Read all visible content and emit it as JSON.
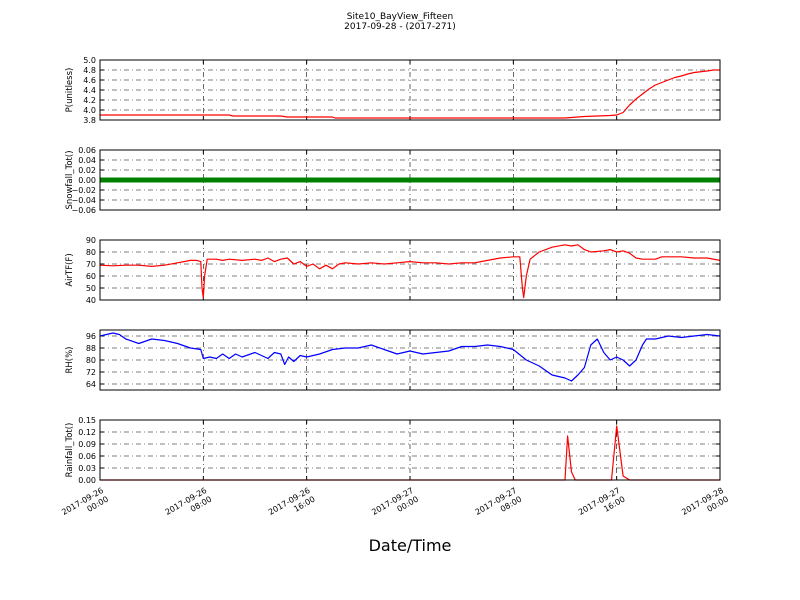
{
  "chart_data": {
    "type": "line",
    "title": "Site10_BayView_Fifteen",
    "subtitle": "2017-09-28 - (2017-271)",
    "xlabel": "Date/Time",
    "x_ticks": [
      {
        "t": 0,
        "line1": "2017-09-26",
        "line2": "00:00"
      },
      {
        "t": 8,
        "line1": "2017-09-26",
        "line2": "08:00"
      },
      {
        "t": 16,
        "line1": "2017-09-26",
        "line2": "16:00"
      },
      {
        "t": 24,
        "line1": "2017-09-27",
        "line2": "00:00"
      },
      {
        "t": 32,
        "line1": "2017-09-27",
        "line2": "08:00"
      },
      {
        "t": 40,
        "line1": "2017-09-27",
        "line2": "16:00"
      },
      {
        "t": 48,
        "line1": "2017-09-28",
        "line2": "00:00"
      }
    ],
    "x_range_hours": [
      0,
      48
    ],
    "grid": true,
    "panels": [
      {
        "ylabel": "P(unitless)",
        "ylim": [
          3.8,
          5.0
        ],
        "yticks": [
          "3.8",
          "4.0",
          "4.2",
          "4.4",
          "4.6",
          "4.8",
          "5.0"
        ],
        "color": "#ff0000",
        "style": "line",
        "points": [
          [
            0,
            3.9
          ],
          [
            10,
            3.9
          ],
          [
            10.3,
            3.88
          ],
          [
            14,
            3.88
          ],
          [
            14.5,
            3.86
          ],
          [
            18,
            3.86
          ],
          [
            18.2,
            3.84
          ],
          [
            36,
            3.84
          ],
          [
            36.5,
            3.85
          ],
          [
            37.5,
            3.87
          ],
          [
            38.5,
            3.88
          ],
          [
            39.5,
            3.89
          ],
          [
            40,
            3.9
          ],
          [
            40.5,
            3.95
          ],
          [
            41,
            4.1
          ],
          [
            41.5,
            4.22
          ],
          [
            42,
            4.32
          ],
          [
            42.5,
            4.42
          ],
          [
            43,
            4.5
          ],
          [
            43.5,
            4.55
          ],
          [
            44,
            4.6
          ],
          [
            44.5,
            4.65
          ],
          [
            45,
            4.68
          ],
          [
            45.5,
            4.72
          ],
          [
            46,
            4.75
          ],
          [
            47,
            4.78
          ],
          [
            47.5,
            4.8
          ],
          [
            48,
            4.8
          ]
        ]
      },
      {
        "ylabel": "Snowfall_Tot()",
        "ylim": [
          -0.06,
          0.06
        ],
        "yticks": [
          "−0.06",
          "−0.04",
          "−0.02",
          "0.00",
          "0.02",
          "0.04",
          "0.06"
        ],
        "color": "#008000",
        "style": "thick",
        "points": [
          [
            0,
            0
          ],
          [
            48,
            0
          ]
        ]
      },
      {
        "ylabel": "AirTF(F)",
        "ylim": [
          40,
          90
        ],
        "yticks": [
          "40",
          "50",
          "60",
          "70",
          "80",
          "90"
        ],
        "color": "#ff0000",
        "style": "line",
        "points": [
          [
            0,
            69
          ],
          [
            1,
            68.5
          ],
          [
            2,
            69
          ],
          [
            3,
            69
          ],
          [
            4,
            68
          ],
          [
            5,
            69
          ],
          [
            6,
            71
          ],
          [
            6.5,
            72
          ],
          [
            7,
            73
          ],
          [
            7.5,
            73
          ],
          [
            7.8,
            72
          ],
          [
            7.9,
            50
          ],
          [
            8,
            42
          ],
          [
            8.1,
            60
          ],
          [
            8.3,
            74
          ],
          [
            9,
            74
          ],
          [
            9.5,
            73
          ],
          [
            10,
            74
          ],
          [
            11,
            73
          ],
          [
            12,
            74
          ],
          [
            12.5,
            73
          ],
          [
            13,
            75
          ],
          [
            13.5,
            72
          ],
          [
            14,
            74
          ],
          [
            14.5,
            75
          ],
          [
            15,
            70
          ],
          [
            15.5,
            72
          ],
          [
            16,
            68
          ],
          [
            16.5,
            70
          ],
          [
            17,
            66
          ],
          [
            17.5,
            69
          ],
          [
            18,
            66
          ],
          [
            18.5,
            70
          ],
          [
            19,
            71
          ],
          [
            20,
            70
          ],
          [
            21,
            71
          ],
          [
            22,
            70
          ],
          [
            23,
            71
          ],
          [
            24,
            72
          ],
          [
            25,
            71
          ],
          [
            26,
            71
          ],
          [
            27,
            70
          ],
          [
            28,
            71
          ],
          [
            29,
            71
          ],
          [
            30,
            73
          ],
          [
            31,
            75
          ],
          [
            32,
            76
          ],
          [
            32.5,
            76
          ],
          [
            32.7,
            50
          ],
          [
            32.8,
            42
          ],
          [
            33,
            60
          ],
          [
            33.3,
            74
          ],
          [
            34,
            80
          ],
          [
            35,
            84
          ],
          [
            36,
            86
          ],
          [
            36.5,
            85
          ],
          [
            37,
            86
          ],
          [
            37.5,
            82
          ],
          [
            38,
            80
          ],
          [
            39,
            81
          ],
          [
            39.5,
            82
          ],
          [
            40,
            80
          ],
          [
            40.5,
            81
          ],
          [
            41,
            79
          ],
          [
            41.5,
            75
          ],
          [
            42,
            74
          ],
          [
            43,
            74
          ],
          [
            43.5,
            76
          ],
          [
            45,
            76
          ],
          [
            46,
            75
          ],
          [
            47,
            75
          ],
          [
            48,
            73
          ]
        ]
      },
      {
        "ylabel": "RH(%)",
        "ylim": [
          60,
          100
        ],
        "yticks": [
          "64",
          "72",
          "80",
          "88",
          "96"
        ],
        "color": "#0000ff",
        "style": "line",
        "points": [
          [
            0,
            96
          ],
          [
            1,
            98
          ],
          [
            1.5,
            97
          ],
          [
            2,
            94
          ],
          [
            3,
            91
          ],
          [
            4,
            94
          ],
          [
            5,
            93
          ],
          [
            6,
            91
          ],
          [
            7,
            88
          ],
          [
            7.8,
            87
          ],
          [
            8,
            81
          ],
          [
            8.5,
            82
          ],
          [
            9,
            81
          ],
          [
            9.5,
            84
          ],
          [
            10,
            81
          ],
          [
            10.5,
            84
          ],
          [
            11,
            82
          ],
          [
            12,
            85
          ],
          [
            12.5,
            83
          ],
          [
            13,
            81
          ],
          [
            13.5,
            85
          ],
          [
            14,
            84
          ],
          [
            14.3,
            77
          ],
          [
            14.6,
            82
          ],
          [
            15,
            79
          ],
          [
            15.5,
            83
          ],
          [
            16,
            82
          ],
          [
            17,
            84
          ],
          [
            18,
            87
          ],
          [
            19,
            88
          ],
          [
            20,
            88
          ],
          [
            21,
            90
          ],
          [
            22,
            87
          ],
          [
            23,
            84
          ],
          [
            24,
            86
          ],
          [
            25,
            84
          ],
          [
            26,
            85
          ],
          [
            27,
            86
          ],
          [
            28,
            89
          ],
          [
            29,
            89
          ],
          [
            30,
            90
          ],
          [
            31,
            89
          ],
          [
            32,
            87
          ],
          [
            33,
            80
          ],
          [
            34,
            76
          ],
          [
            35,
            70
          ],
          [
            36,
            68
          ],
          [
            36.5,
            66
          ],
          [
            37,
            70
          ],
          [
            37.5,
            75
          ],
          [
            38,
            90
          ],
          [
            38.5,
            94
          ],
          [
            39,
            85
          ],
          [
            39.5,
            80
          ],
          [
            40,
            82
          ],
          [
            40.5,
            80
          ],
          [
            41,
            76
          ],
          [
            41.5,
            80
          ],
          [
            42,
            90
          ],
          [
            42.3,
            94
          ],
          [
            43,
            94
          ],
          [
            44,
            96
          ],
          [
            45,
            95
          ],
          [
            46,
            96
          ],
          [
            47,
            97
          ],
          [
            48,
            96
          ]
        ]
      },
      {
        "ylabel": "Rainfall_Tot()",
        "ylim": [
          0,
          0.15
        ],
        "yticks": [
          "0.00",
          "0.03",
          "0.06",
          "0.09",
          "0.12",
          "0.15"
        ],
        "color": "#ff0000",
        "style": "line",
        "points": [
          [
            0,
            0
          ],
          [
            36,
            0
          ],
          [
            36.2,
            0.11
          ],
          [
            36.5,
            0.02
          ],
          [
            36.8,
            0
          ],
          [
            39.6,
            0
          ],
          [
            40,
            0.135
          ],
          [
            40.5,
            0.01
          ],
          [
            41,
            0
          ],
          [
            48,
            0
          ]
        ]
      }
    ]
  }
}
